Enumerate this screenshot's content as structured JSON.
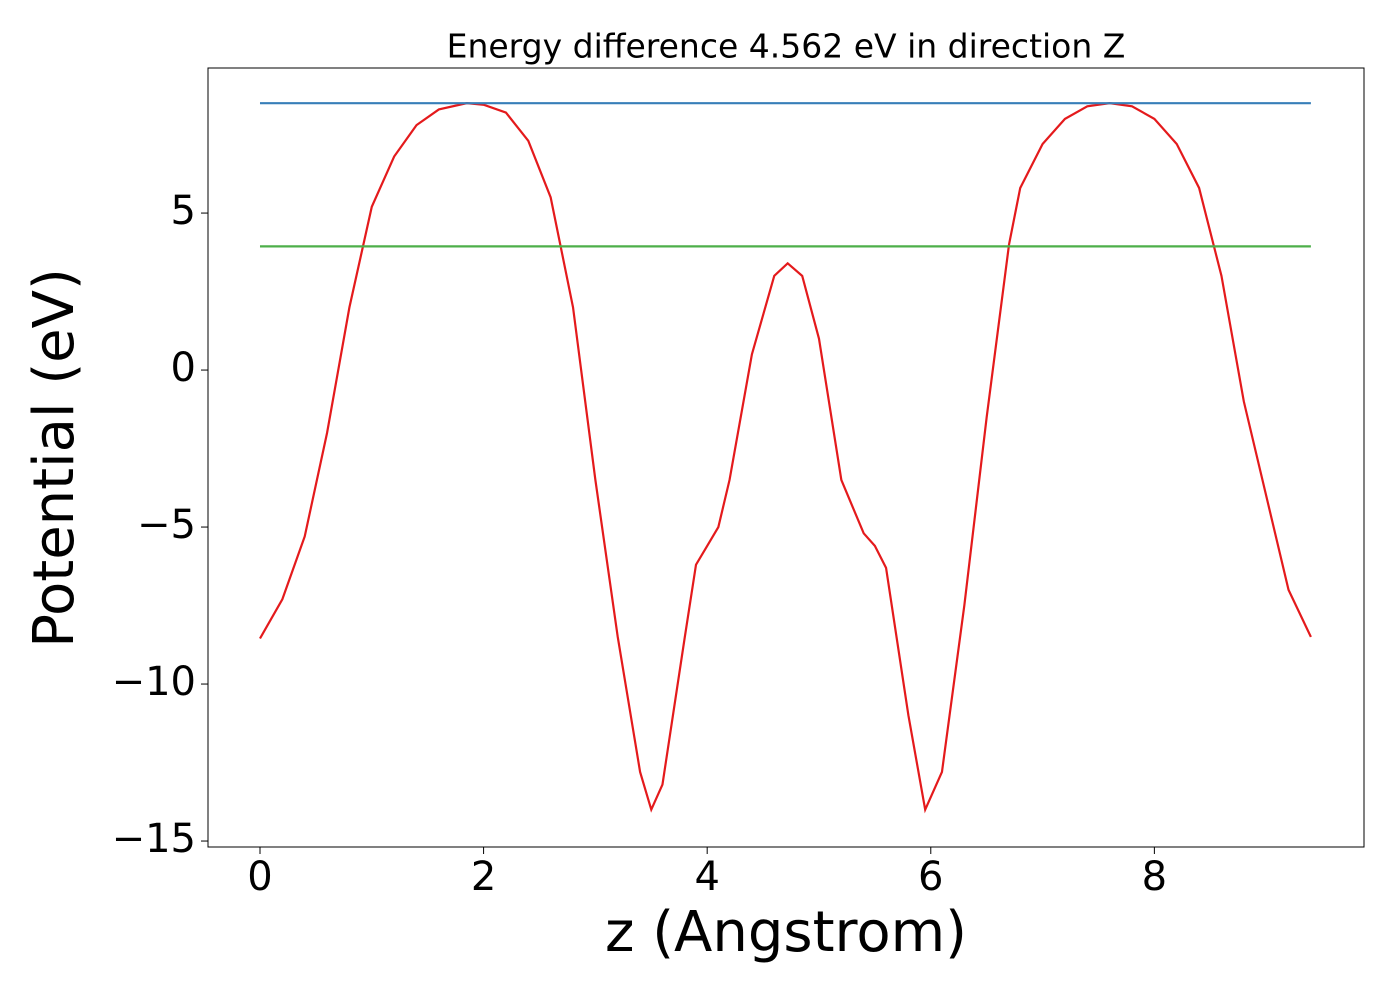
{
  "chart_data": {
    "type": "line",
    "title": "Energy difference 4.562 eV in direction Z",
    "xlabel": "z (Angstrom)",
    "ylabel": "Potential (eV)",
    "xlim": [
      -0.465,
      9.875
    ],
    "ylim": [
      -15.19,
      9.62
    ],
    "xticks": [
      0,
      2,
      4,
      6,
      8
    ],
    "yticks": [
      5,
      0,
      {
        "value": -5,
        "label": "−5"
      },
      {
        "value": -10,
        "label": "−10"
      },
      {
        "value": -15,
        "label": "−15"
      }
    ],
    "series": [
      {
        "color": "#e41a1c",
        "x": [
          0,
          0.2,
          0.4,
          0.6,
          0.8,
          1.0,
          1.2,
          1.4,
          1.6,
          1.85,
          2.0,
          2.2,
          2.4,
          2.6,
          2.8,
          3.0,
          3.2,
          3.4,
          3.5,
          3.6,
          3.8,
          3.9,
          4.0,
          4.1,
          4.2,
          4.4,
          4.6,
          4.72,
          4.85,
          5.0,
          5.2,
          5.4,
          5.5,
          5.6,
          5.8,
          5.95,
          6.1,
          6.3,
          6.5,
          6.7,
          6.8,
          7.0,
          7.2,
          7.4,
          7.6,
          7.8,
          8.0,
          8.2,
          8.4,
          8.6,
          8.8,
          9.0,
          9.2,
          9.4
        ],
        "values": [
          -8.55,
          -7.3,
          -5.3,
          -2.0,
          2.0,
          5.2,
          6.8,
          7.8,
          8.3,
          8.5,
          8.45,
          8.2,
          7.3,
          5.5,
          2.0,
          -3.5,
          -8.5,
          -12.8,
          -14.0,
          -13.2,
          -8.5,
          -6.2,
          -5.6,
          -5.0,
          -3.5,
          0.5,
          3.0,
          3.4,
          3.0,
          1.0,
          -3.5,
          -5.2,
          -5.6,
          -6.3,
          -11.0,
          -14.0,
          -12.8,
          -7.5,
          -1.5,
          4.0,
          5.8,
          7.2,
          8.0,
          8.4,
          8.5,
          8.4,
          8.0,
          7.2,
          5.8,
          3.0,
          -1.0,
          -4.0,
          -7.0,
          -8.5
        ]
      },
      {
        "color": "#377eb8",
        "x": [
          0,
          9.4
        ],
        "values": [
          8.5,
          8.5
        ]
      },
      {
        "color": "#4daf4a",
        "x": [
          0,
          9.4
        ],
        "values": [
          3.94,
          3.94
        ]
      }
    ]
  }
}
